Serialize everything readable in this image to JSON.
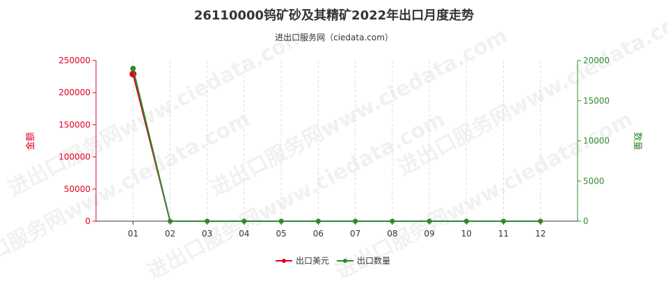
{
  "chart_data": {
    "type": "line",
    "title": "26110000钨矿砂及其精矿2022年出口月度走势",
    "subtitle": "进出口服务网（ciedata.com）",
    "categories": [
      "01",
      "02",
      "03",
      "04",
      "05",
      "06",
      "07",
      "08",
      "09",
      "10",
      "11",
      "12"
    ],
    "y_left": {
      "label": "金额",
      "ticks": [
        "250000",
        "200000",
        "150000",
        "100000",
        "50000",
        "0"
      ],
      "range": [
        0,
        250000
      ]
    },
    "y_right": {
      "label": "数量",
      "ticks": [
        "20000",
        "15000",
        "10000",
        "5000",
        "0"
      ],
      "range": [
        0,
        20000
      ]
    },
    "series": [
      {
        "name": "出口美元",
        "axis": "left",
        "color": "#e0001b",
        "values": [
          229000,
          0,
          0,
          0,
          0,
          0,
          0,
          0,
          0,
          0,
          0,
          0
        ]
      },
      {
        "name": "出口数量",
        "axis": "right",
        "color": "#2e8b2e",
        "values": [
          19000,
          0,
          0,
          0,
          0,
          0,
          0,
          0,
          0,
          0,
          0,
          0
        ]
      }
    ],
    "legend_position": "bottom-center",
    "grid": "vertical"
  },
  "watermark": "进出口服务网www.ciedata.com"
}
